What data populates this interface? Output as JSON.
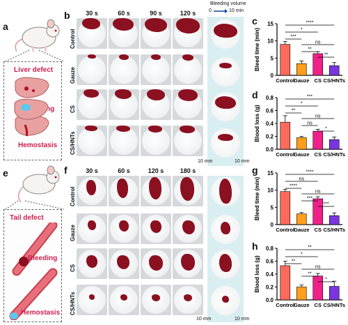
{
  "panels": {
    "a": "a",
    "b": "b",
    "c": "c",
    "d": "d",
    "e": "e",
    "f": "f",
    "g": "g",
    "h": "h"
  },
  "liver": {
    "defect": "Liver defect",
    "bleeding": "Bleeding",
    "hemostasis": "Hemostasis"
  },
  "tail": {
    "defect": "Tail defect",
    "bleeding": "Bleeding",
    "hemostasis": "Hemostasis"
  },
  "timesB": [
    "30 s",
    "60 s",
    "90 s",
    "120 s"
  ],
  "timesF": [
    "30 s",
    "60 s",
    "120 s",
    "180 s"
  ],
  "rows": [
    "Control",
    "Gauze",
    "CS",
    "CS/HNTs"
  ],
  "volume": {
    "title": "Bleeding volume",
    "start": "0",
    "end": "10 min"
  },
  "scales": {
    "b1": "10 mm",
    "b2": "10 mm",
    "f1": "10 mm",
    "f2": "10 mm"
  },
  "colors": {
    "Control": "#ff6a5c",
    "Gauze": "#ff9f1a",
    "CS": "#f0208a",
    "CS/HNTs": "#7a35e0",
    "blood": "#8b1020"
  },
  "chart_data": [
    {
      "panel": "c",
      "type": "bar",
      "categories": [
        "Control",
        "Gauze",
        "CS",
        "CS/HNTs"
      ],
      "values": [
        9.0,
        3.4,
        6.3,
        2.8
      ],
      "errors": [
        0.8,
        0.8,
        0.6,
        0.9
      ],
      "ylabel": "Bleed time (min)",
      "ylim": [
        0,
        15
      ],
      "yticks": [
        0,
        5,
        10,
        15
      ],
      "sig": [
        {
          "a": 0,
          "b": 3,
          "t": "****"
        },
        {
          "a": 0,
          "b": 2,
          "t": "*"
        },
        {
          "a": 0,
          "b": 1,
          "t": "***"
        },
        {
          "a": 1,
          "b": 3,
          "t": "ns"
        },
        {
          "a": 1,
          "b": 2,
          "t": "**"
        },
        {
          "a": 2,
          "b": 3,
          "t": "**"
        }
      ]
    },
    {
      "panel": "d",
      "type": "bar",
      "categories": [
        "Control",
        "Gauze",
        "CS",
        "CS/HNTs"
      ],
      "values": [
        0.42,
        0.18,
        0.28,
        0.15
      ],
      "errors": [
        0.1,
        0.02,
        0.03,
        0.04
      ],
      "ylabel": "Blood loss (g)",
      "ylim": [
        0,
        0.8
      ],
      "yticks": [
        0.0,
        0.2,
        0.4,
        0.6,
        0.8
      ],
      "sig": [
        {
          "a": 0,
          "b": 3,
          "t": "***"
        },
        {
          "a": 0,
          "b": 2,
          "t": "*"
        },
        {
          "a": 0,
          "b": 1,
          "t": "**"
        },
        {
          "a": 1,
          "b": 3,
          "t": "ns"
        },
        {
          "a": 1,
          "b": 2,
          "t": "ns"
        },
        {
          "a": 2,
          "b": 3,
          "t": "*"
        }
      ]
    },
    {
      "panel": "g",
      "type": "bar",
      "categories": [
        "Control",
        "Gauze",
        "CS",
        "CS/HNTs"
      ],
      "values": [
        9.6,
        3.1,
        7.5,
        2.6
      ],
      "errors": [
        0.6,
        0.4,
        0.6,
        0.8
      ],
      "ylabel": "Bleed time (min)",
      "ylim": [
        0,
        15
      ],
      "yticks": [
        0,
        5,
        10,
        15
      ],
      "sig": [
        {
          "a": 0,
          "b": 3,
          "t": "****"
        },
        {
          "a": 0,
          "b": 2,
          "t": "ns"
        },
        {
          "a": 0,
          "b": 1,
          "t": "****"
        },
        {
          "a": 1,
          "b": 3,
          "t": "ns"
        },
        {
          "a": 1,
          "b": 2,
          "t": "***"
        },
        {
          "a": 2,
          "b": 3,
          "t": "***"
        }
      ]
    },
    {
      "panel": "h",
      "type": "bar",
      "categories": [
        "Control",
        "Gauze",
        "CS",
        "CS/HNTs"
      ],
      "values": [
        0.53,
        0.2,
        0.37,
        0.21
      ],
      "errors": [
        0.07,
        0.03,
        0.04,
        0.08
      ],
      "ylabel": "Blood loss (g)",
      "ylim": [
        0,
        0.8
      ],
      "yticks": [
        0.0,
        0.2,
        0.4,
        0.6,
        0.8
      ],
      "sig": [
        {
          "a": 0,
          "b": 3,
          "t": "**"
        },
        {
          "a": 0,
          "b": 2,
          "t": "*"
        },
        {
          "a": 0,
          "b": 1,
          "t": "**"
        },
        {
          "a": 1,
          "b": 3,
          "t": "ns"
        },
        {
          "a": 1,
          "b": 2,
          "t": "**"
        },
        {
          "a": 2,
          "b": 3,
          "t": "*"
        }
      ]
    }
  ]
}
